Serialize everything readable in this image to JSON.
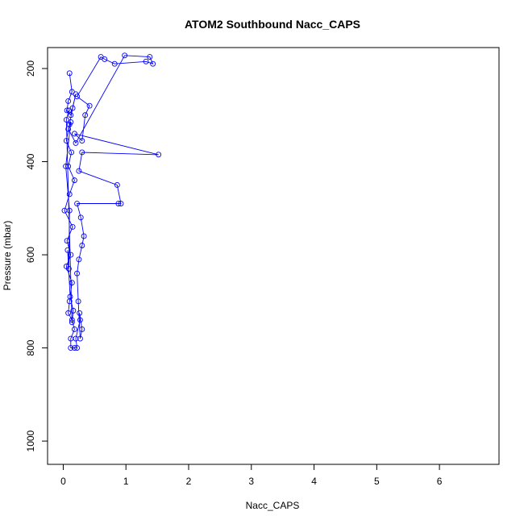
{
  "chart_data": {
    "type": "line",
    "title": "ATOM2 Southbound Nacc_CAPS",
    "xlabel": "Nacc_CAPS",
    "ylabel": "Pressure (mbar)",
    "xlim": [
      -0.25,
      6.95
    ],
    "ylim": [
      1050,
      155
    ],
    "y_axis_inverted": true,
    "x_ticks": [
      0,
      1,
      2,
      3,
      4,
      5,
      6
    ],
    "y_ticks": [
      200,
      400,
      600,
      800,
      1000
    ],
    "grid": false,
    "legend": "none",
    "marker": "open-circle",
    "color": "#0000ff",
    "series": [
      {
        "values": [
          [
            0.1,
            210
          ],
          [
            0.14,
            250
          ],
          [
            0.08,
            270
          ],
          [
            0.06,
            290
          ],
          [
            0.12,
            300
          ],
          [
            0.2,
            255
          ],
          [
            0.15,
            285
          ],
          [
            0.1,
            320
          ],
          [
            0.05,
            355
          ],
          [
            0.13,
            380
          ],
          [
            0.08,
            410
          ],
          [
            0.18,
            440
          ],
          [
            0.1,
            470
          ],
          [
            0.02,
            505
          ],
          [
            0.15,
            540
          ],
          [
            0.06,
            570
          ],
          [
            0.12,
            600
          ],
          [
            0.05,
            625
          ],
          [
            0.14,
            660
          ],
          [
            0.1,
            700
          ],
          [
            0.08,
            725
          ],
          [
            0.14,
            740
          ],
          [
            0.18,
            760
          ],
          [
            0.12,
            780
          ],
          [
            0.12,
            800
          ],
          [
            0.18,
            800
          ],
          [
            0.22,
            800
          ],
          [
            0.2,
            780
          ],
          [
            0.27,
            740
          ],
          [
            0.26,
            725
          ],
          [
            0.3,
            760
          ],
          [
            0.27,
            780
          ],
          [
            0.24,
            700
          ],
          [
            0.22,
            640
          ],
          [
            0.25,
            610
          ],
          [
            0.3,
            580
          ],
          [
            0.33,
            560
          ],
          [
            0.28,
            520
          ],
          [
            0.22,
            490
          ],
          [
            0.88,
            490
          ],
          [
            0.92,
            490
          ],
          [
            0.86,
            450
          ],
          [
            0.25,
            420
          ],
          [
            0.3,
            380
          ],
          [
            1.52,
            385
          ],
          [
            0.18,
            340
          ],
          [
            0.3,
            355
          ],
          [
            0.35,
            300
          ],
          [
            0.42,
            280
          ],
          [
            0.22,
            260
          ],
          [
            0.6,
            175
          ],
          [
            0.66,
            180
          ],
          [
            0.82,
            190
          ],
          [
            1.32,
            185
          ],
          [
            1.43,
            190
          ],
          [
            1.38,
            175
          ],
          [
            0.98,
            172
          ],
          [
            0.2,
            360
          ],
          [
            0.08,
            330
          ],
          [
            0.12,
            315
          ],
          [
            0.04,
            410
          ],
          [
            0.1,
            505
          ],
          [
            0.09,
            630
          ],
          [
            0.07,
            590
          ],
          [
            0.11,
            690
          ],
          [
            0.16,
            720
          ],
          [
            0.14,
            745
          ],
          [
            0.05,
            310
          ],
          [
            0.09,
            290
          ]
        ]
      }
    ]
  }
}
